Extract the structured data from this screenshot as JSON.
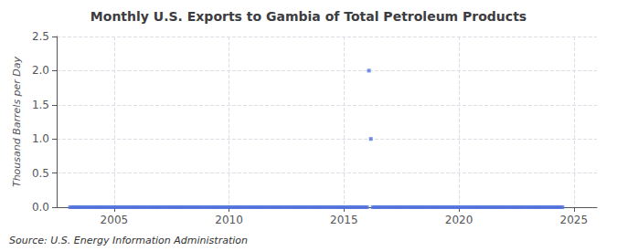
{
  "chart_data": {
    "type": "scatter",
    "title": "Monthly U.S. Exports to Gambia of Total Petroleum Products",
    "ylabel": "Thousand Barrels per Day",
    "annotations": [
      "Source: U.S. Energy Information Administration"
    ],
    "marker": "square",
    "grid": true,
    "xlim": [
      2002.5,
      2026
    ],
    "xticks": [
      2005,
      2010,
      2015,
      2020,
      2025
    ],
    "ylim": [
      0,
      2.5
    ],
    "yticks": [
      {
        "value": 0,
        "label": "0.0"
      },
      0.5,
      {
        "value": 1,
        "label": "1.0"
      },
      1.5,
      {
        "value": 2,
        "label": "2.0"
      },
      2.5
    ],
    "x": [
      2003.083,
      2003.167,
      2003.25,
      2003.333,
      2003.417,
      2003.5,
      2003.583,
      2003.667,
      2003.75,
      2003.833,
      2003.917,
      2004.0,
      2004.083,
      2004.167,
      2004.25,
      2004.333,
      2004.417,
      2004.5,
      2004.583,
      2004.667,
      2004.75,
      2004.833,
      2004.917,
      2005.0,
      2005.083,
      2005.167,
      2005.25,
      2005.333,
      2005.417,
      2005.5,
      2005.583,
      2005.667,
      2005.75,
      2005.833,
      2005.917,
      2006.0,
      2006.083,
      2006.167,
      2006.25,
      2006.333,
      2006.417,
      2006.5,
      2006.583,
      2006.667,
      2006.75,
      2006.833,
      2006.917,
      2007.0,
      2007.083,
      2007.167,
      2007.25,
      2007.333,
      2007.417,
      2007.5,
      2007.583,
      2007.667,
      2007.75,
      2007.833,
      2007.917,
      2008.0,
      2008.083,
      2008.167,
      2008.25,
      2008.333,
      2008.417,
      2008.5,
      2008.583,
      2008.667,
      2008.75,
      2008.833,
      2008.917,
      2009.0,
      2009.083,
      2009.167,
      2009.25,
      2009.333,
      2009.417,
      2009.5,
      2009.583,
      2009.667,
      2009.75,
      2009.833,
      2009.917,
      2010.0,
      2010.083,
      2010.167,
      2010.25,
      2010.333,
      2010.417,
      2010.5,
      2010.583,
      2010.667,
      2010.75,
      2010.833,
      2010.917,
      2011.0,
      2011.083,
      2011.167,
      2011.25,
      2011.333,
      2011.417,
      2011.5,
      2011.583,
      2011.667,
      2011.75,
      2011.833,
      2011.917,
      2012.0,
      2012.083,
      2012.167,
      2012.25,
      2012.333,
      2012.417,
      2012.5,
      2012.583,
      2012.667,
      2012.75,
      2012.833,
      2012.917,
      2013.0,
      2013.083,
      2013.167,
      2013.25,
      2013.333,
      2013.417,
      2013.5,
      2013.583,
      2013.667,
      2013.75,
      2013.833,
      2013.917,
      2014.0,
      2014.083,
      2014.167,
      2014.25,
      2014.333,
      2014.417,
      2014.5,
      2014.583,
      2014.667,
      2014.75,
      2014.833,
      2014.917,
      2015.0,
      2015.083,
      2015.167,
      2015.25,
      2015.333,
      2015.417,
      2015.5,
      2015.583,
      2015.667,
      2015.75,
      2015.833,
      2015.917,
      2016.0,
      2016.083,
      2016.167,
      2016.25,
      2016.333,
      2016.417,
      2016.5,
      2016.583,
      2016.667,
      2016.75,
      2016.833,
      2016.917,
      2017.0,
      2017.083,
      2017.167,
      2017.25,
      2017.333,
      2017.417,
      2017.5,
      2017.583,
      2017.667,
      2017.75,
      2017.833,
      2017.917,
      2018.0,
      2018.083,
      2018.167,
      2018.25,
      2018.333,
      2018.417,
      2018.5,
      2018.583,
      2018.667,
      2018.75,
      2018.833,
      2018.917,
      2019.0,
      2019.083,
      2019.167,
      2019.25,
      2019.333,
      2019.417,
      2019.5,
      2019.583,
      2019.667,
      2019.75,
      2019.833,
      2019.917,
      2020.0,
      2020.083,
      2020.167,
      2020.25,
      2020.333,
      2020.417,
      2020.5,
      2020.583,
      2020.667,
      2020.75,
      2020.833,
      2020.917,
      2021.0,
      2021.083,
      2021.167,
      2021.25,
      2021.333,
      2021.417,
      2021.5,
      2021.583,
      2021.667,
      2021.75,
      2021.833,
      2021.917,
      2022.0,
      2022.083,
      2022.167,
      2022.25,
      2022.333,
      2022.417,
      2022.5,
      2022.583,
      2022.667,
      2022.75,
      2022.833,
      2022.917,
      2023.0,
      2023.083,
      2023.167,
      2023.25,
      2023.333,
      2023.417,
      2023.5,
      2023.583,
      2023.667,
      2023.75,
      2023.833,
      2023.917,
      2024.0,
      2024.083,
      2024.167,
      2024.25,
      2024.333,
      2024.417,
      2024.5
    ],
    "values": [
      0,
      0,
      0,
      0,
      0,
      0,
      0,
      0,
      0,
      0,
      0,
      0,
      0,
      0,
      0,
      0,
      0,
      0,
      0,
      0,
      0,
      0,
      0,
      0,
      0,
      0,
      0,
      0,
      0,
      0,
      0,
      0,
      0,
      0,
      0,
      0,
      0,
      0,
      0,
      0,
      0,
      0,
      0,
      0,
      0,
      0,
      0,
      0,
      0,
      0,
      0,
      0,
      0,
      0,
      0,
      0,
      0,
      0,
      0,
      0,
      0,
      0,
      0,
      0,
      0,
      0,
      0,
      0,
      0,
      0,
      0,
      0,
      0,
      0,
      0,
      0,
      0,
      0,
      0,
      0,
      0,
      0,
      0,
      0,
      0,
      0,
      0,
      0,
      0,
      0,
      0,
      0,
      0,
      0,
      0,
      0,
      0,
      0,
      0,
      0,
      0,
      0,
      0,
      0,
      0,
      0,
      0,
      0,
      0,
      0,
      0,
      0,
      0,
      0,
      0,
      0,
      0,
      0,
      0,
      0,
      0,
      0,
      0,
      0,
      0,
      0,
      0,
      0,
      0,
      0,
      0,
      0,
      0,
      0,
      0,
      0,
      0,
      0,
      0,
      0,
      0,
      0,
      0,
      0,
      0,
      0,
      0,
      0,
      0,
      0,
      0,
      0,
      0,
      0,
      0,
      0,
      2.0,
      1.0,
      0,
      0,
      0,
      0,
      0,
      0,
      0,
      0,
      0,
      0,
      0,
      0,
      0,
      0,
      0,
      0,
      0,
      0,
      0,
      0,
      0,
      0,
      0,
      0,
      0,
      0,
      0,
      0,
      0,
      0,
      0,
      0,
      0,
      0,
      0,
      0,
      0,
      0,
      0,
      0,
      0,
      0,
      0,
      0,
      0,
      0,
      0,
      0,
      0,
      0,
      0,
      0,
      0,
      0,
      0,
      0,
      0,
      0,
      0,
      0,
      0,
      0,
      0,
      0,
      0,
      0,
      0,
      0,
      0,
      0,
      0,
      0,
      0,
      0,
      0,
      0,
      0,
      0,
      0,
      0,
      0,
      0,
      0,
      0,
      0,
      0,
      0,
      0,
      0,
      0,
      0,
      0,
      0,
      0,
      0,
      0,
      0,
      0,
      0,
      0
    ]
  }
}
